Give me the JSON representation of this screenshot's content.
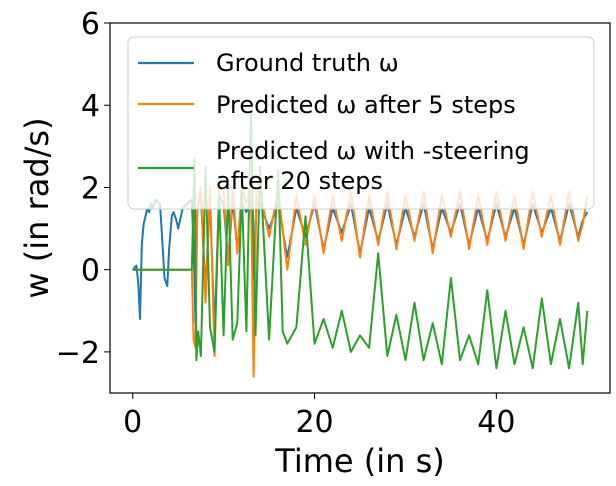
{
  "chart_data": {
    "type": "line",
    "title": "",
    "xlabel": "Time (in s)",
    "ylabel": "w (in rad/s)",
    "xlim": [
      -2.5,
      52.5
    ],
    "ylim": [
      -3,
      6
    ],
    "xticks": [
      0,
      20,
      40
    ],
    "xtick_labels": [
      "0",
      "20",
      "40"
    ],
    "yticks": [
      -2,
      0,
      2,
      4,
      6
    ],
    "ytick_labels": [
      "−2",
      "0",
      "2",
      "4",
      "6"
    ],
    "legend_position": "upper-right",
    "series": [
      {
        "name": "Ground truth ω",
        "color": "#1f77b4",
        "x": [
          0.0,
          0.4,
          0.6,
          0.8,
          1.0,
          1.2,
          1.4,
          1.6,
          1.8,
          2.0,
          2.2,
          2.5,
          3.0,
          3.2,
          3.5,
          3.8,
          4.0,
          4.3,
          4.5,
          4.8,
          5.0,
          5.5,
          6.0,
          6.5,
          6.7,
          6.9,
          7.1,
          7.5,
          8.0,
          8.5,
          9.0,
          9.5,
          10.0,
          10.5,
          11.0,
          11.5,
          12.0,
          12.5,
          13.0,
          13.3,
          13.6,
          14.0,
          15.0,
          16.0,
          17.0,
          18.0,
          19.0,
          20.0,
          21.0,
          22.0,
          23.0,
          24.0,
          25.0,
          26.0,
          27.0,
          28.0,
          29.0,
          30.0,
          31.0,
          32.0,
          33.0,
          34.0,
          35.0,
          36.0,
          37.0,
          38.0,
          39.0,
          40.0,
          41.0,
          42.0,
          43.0,
          44.0,
          45.0,
          46.0,
          47.0,
          48.0,
          49.0,
          49.5,
          50.0
        ],
        "y": [
          0.0,
          0.1,
          -0.3,
          -1.2,
          0.6,
          1.1,
          1.3,
          1.5,
          1.4,
          1.6,
          1.5,
          1.7,
          1.6,
          0.9,
          -0.2,
          -0.4,
          0.5,
          1.3,
          1.4,
          1.2,
          1.0,
          1.5,
          1.6,
          1.7,
          0.6,
          -1.3,
          1.5,
          1.8,
          -0.5,
          1.7,
          -1.5,
          1.8,
          1.6,
          0.2,
          1.7,
          0.5,
          1.6,
          1.4,
          1.7,
          -0.2,
          1.6,
          1.6,
          1.0,
          1.6,
          0.3,
          1.5,
          0.8,
          1.6,
          0.5,
          1.5,
          0.9,
          1.6,
          0.4,
          1.5,
          0.7,
          1.6,
          0.6,
          1.5,
          0.8,
          1.6,
          0.5,
          1.5,
          0.9,
          1.6,
          0.6,
          1.5,
          0.7,
          1.6,
          0.8,
          1.5,
          0.6,
          1.6,
          0.9,
          1.5,
          0.7,
          1.6,
          0.8,
          1.2,
          1.4
        ]
      },
      {
        "name": "Predicted ω after 5 steps",
        "color": "#ff7f0e",
        "x": [
          0.0,
          6.5,
          6.7,
          6.9,
          7.1,
          7.5,
          8.0,
          8.5,
          9.0,
          9.5,
          10.0,
          10.5,
          11.0,
          11.5,
          12.0,
          12.5,
          13.0,
          13.3,
          13.6,
          14.0,
          15.0,
          16.0,
          17.0,
          18.0,
          19.0,
          20.0,
          21.0,
          22.0,
          23.0,
          24.0,
          25.0,
          26.0,
          27.0,
          28.0,
          29.0,
          30.0,
          31.0,
          32.0,
          33.0,
          34.0,
          35.0,
          36.0,
          37.0,
          38.0,
          39.0,
          40.0,
          41.0,
          42.0,
          43.0,
          44.0,
          45.0,
          46.0,
          47.0,
          48.0,
          49.0,
          49.5,
          50.0
        ],
        "y": [
          0.0,
          0.0,
          -1.7,
          -1.9,
          1.5,
          2.0,
          -0.8,
          2.0,
          -2.1,
          2.0,
          1.9,
          0.1,
          2.0,
          0.4,
          2.0,
          1.6,
          2.0,
          -2.6,
          1.9,
          1.9,
          0.8,
          1.9,
          0.0,
          1.8,
          0.6,
          1.8,
          0.4,
          1.8,
          0.7,
          1.9,
          0.3,
          1.8,
          0.6,
          1.9,
          0.5,
          1.8,
          0.7,
          1.9,
          0.4,
          1.8,
          0.8,
          1.9,
          0.5,
          1.8,
          0.6,
          1.9,
          0.7,
          1.8,
          0.5,
          1.9,
          0.8,
          1.8,
          0.6,
          1.9,
          0.7,
          1.1,
          1.8
        ]
      },
      {
        "name": "Predicted ω with -steering after 20 steps",
        "color": "#2ca02c",
        "x": [
          0.0,
          6.5,
          6.8,
          7.0,
          7.2,
          7.5,
          8.0,
          8.5,
          9.0,
          9.5,
          10.0,
          10.5,
          11.0,
          11.5,
          12.0,
          12.5,
          13.0,
          13.5,
          14.0,
          15.0,
          16.0,
          16.5,
          17.0,
          18.0,
          19.0,
          20.0,
          21.0,
          22.0,
          23.0,
          24.0,
          25.0,
          26.0,
          27.0,
          28.0,
          29.0,
          30.0,
          31.0,
          32.0,
          33.0,
          34.0,
          35.0,
          36.0,
          37.0,
          38.0,
          39.0,
          40.0,
          41.0,
          42.0,
          43.0,
          44.0,
          45.0,
          46.0,
          47.0,
          48.0,
          49.0,
          49.5,
          50.0
        ],
        "y": [
          0.0,
          0.0,
          2.7,
          -2.2,
          -1.5,
          -2.1,
          2.5,
          -1.4,
          -2.0,
          1.8,
          -1.6,
          2.0,
          -1.7,
          -1.3,
          1.9,
          -1.5,
          3.8,
          -1.6,
          2.5,
          -1.7,
          2.4,
          -1.5,
          -1.8,
          -1.4,
          1.3,
          -1.8,
          -1.2,
          -1.9,
          -1.0,
          -2.0,
          -1.6,
          -1.9,
          0.4,
          -2.1,
          -1.1,
          -2.2,
          -0.8,
          -2.2,
          -1.3,
          -2.3,
          -0.2,
          -2.2,
          -1.6,
          -2.3,
          -0.5,
          -2.4,
          -1.0,
          -2.3,
          -1.4,
          -2.4,
          -0.7,
          -2.3,
          -1.2,
          -2.4,
          -0.8,
          -2.3,
          -1.0
        ]
      }
    ]
  }
}
